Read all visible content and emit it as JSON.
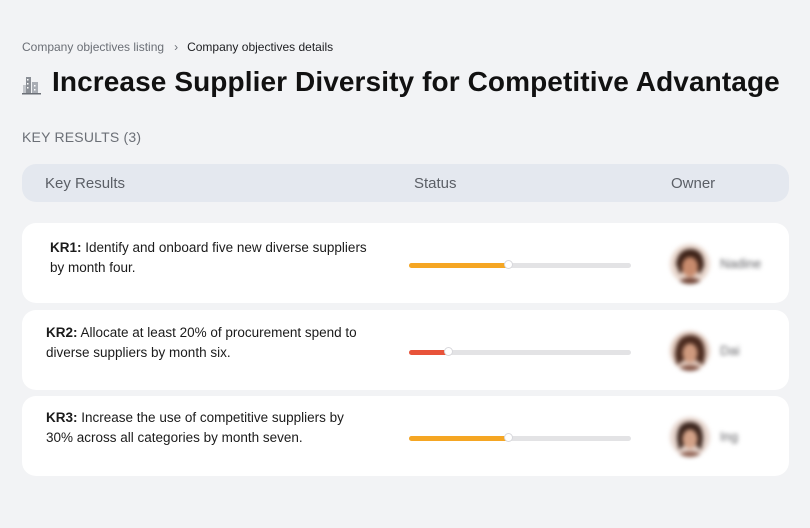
{
  "breadcrumb": {
    "parent": "Company objectives listing",
    "separator": "›",
    "current": "Company objectives details"
  },
  "title": "Increase Supplier Diversity for Competitive Advantage",
  "title_icon": "building-icon",
  "section": {
    "label": "KEY RESULTS (3)"
  },
  "table": {
    "headers": {
      "key_results": "Key Results",
      "status": "Status",
      "owner": "Owner"
    }
  },
  "key_results": [
    {
      "code": "KR1:",
      "text": " Identify and onboard five new diverse suppliers by month four.",
      "progress": 0.45,
      "color": "#f5a623",
      "owner": "Nadine"
    },
    {
      "code": "KR2:",
      "text": " Allocate at least 20% of procurement spend to diverse suppliers by month six.",
      "progress": 0.18,
      "color": "#e8533a",
      "owner": "Dai"
    },
    {
      "code": "KR3:",
      "text": " Increase the use of competitive suppliers by 30% across all categories by month seven.",
      "progress": 0.45,
      "color": "#f5a623",
      "owner": "Ing"
    }
  ]
}
